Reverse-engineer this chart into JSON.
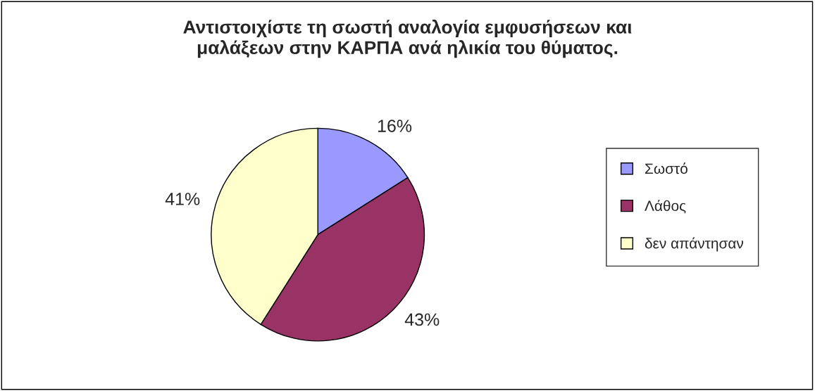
{
  "chart_data": {
    "type": "pie",
    "title": "Αντιστοιχίστε τη σωστή αναλογία εμφυσήσεων και\nμαλάξεων στην ΚΑΡΠΑ ανά ηλικία του θύματος.",
    "categories": [
      "Σωστό",
      "Λάθος",
      "δεν απάντησαν"
    ],
    "values": [
      16,
      43,
      41
    ],
    "colors": [
      "#9999ff",
      "#993366",
      "#ffffcc"
    ],
    "value_labels": [
      "16%",
      "43%",
      "41%"
    ],
    "legend": "right"
  }
}
